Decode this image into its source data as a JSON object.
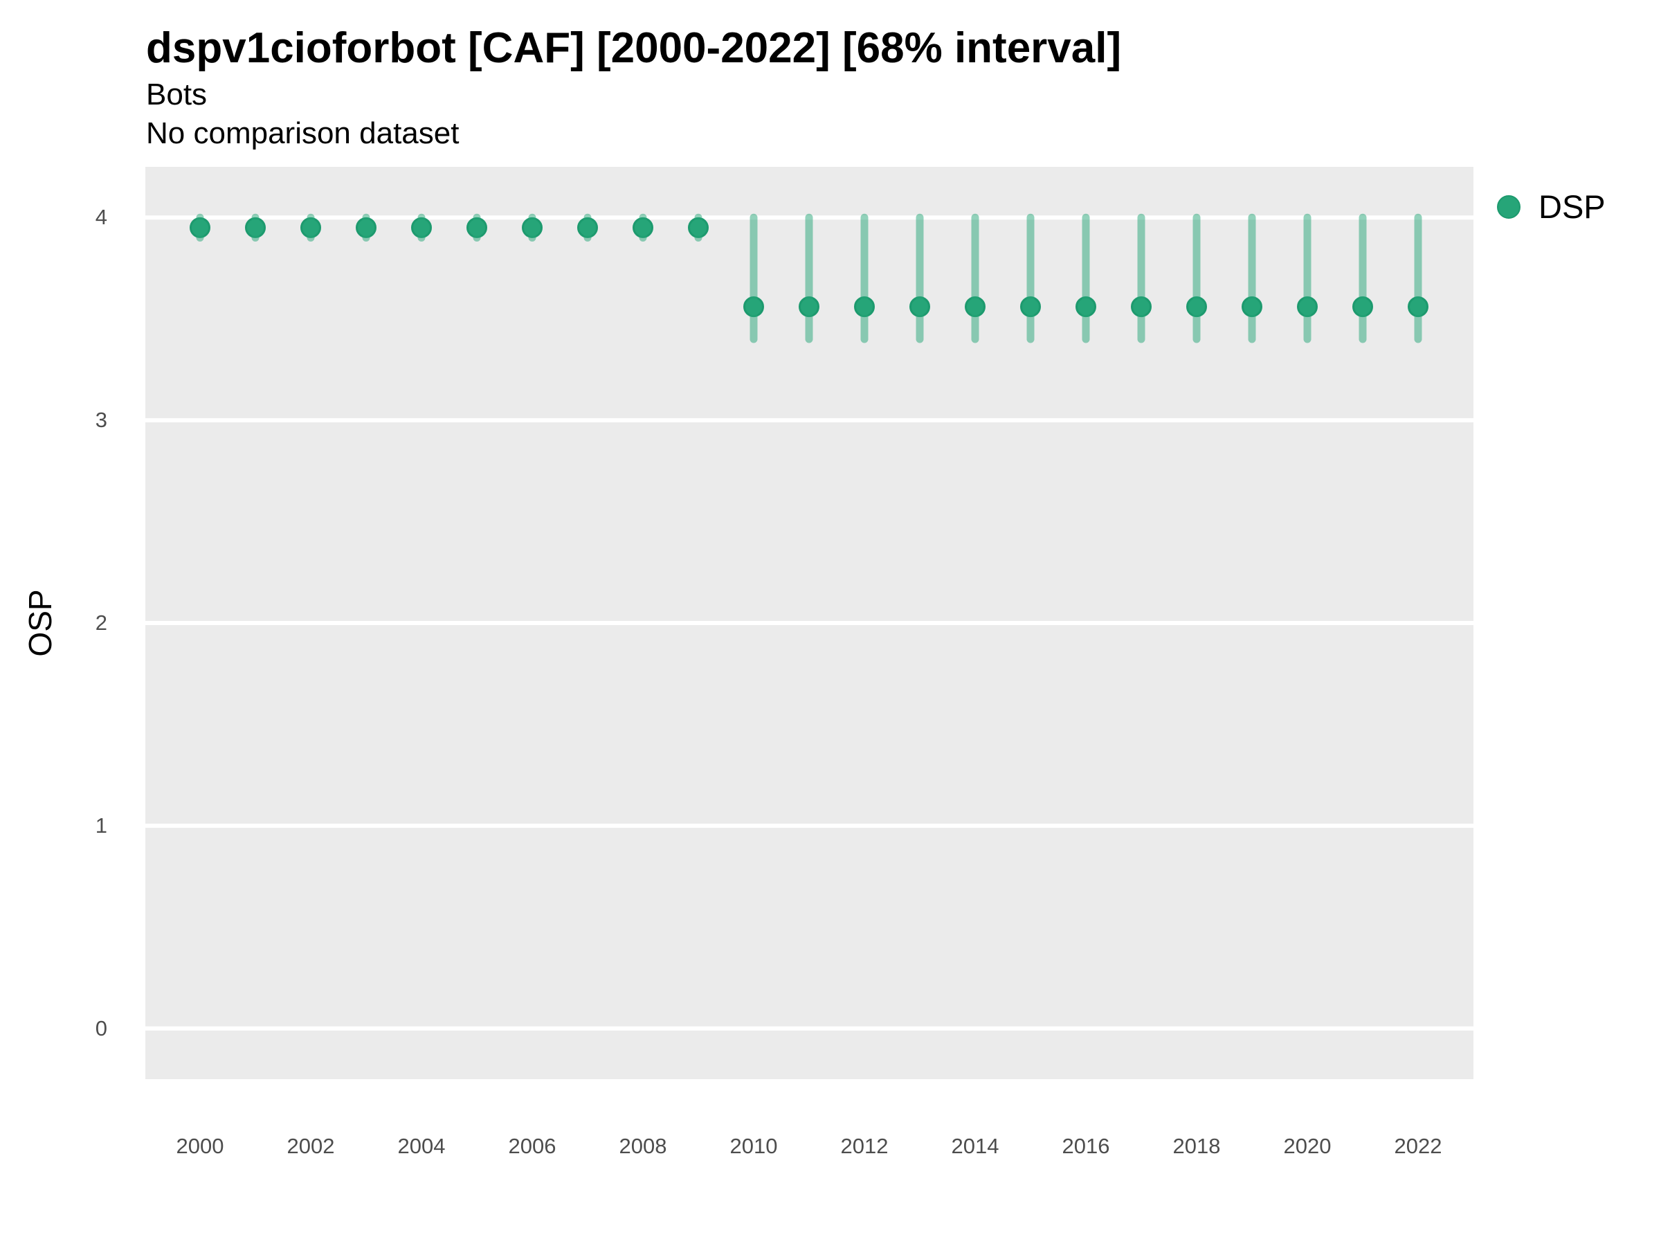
{
  "header": {
    "title": "dspv1cioforbot [CAF] [2000-2022] [68% interval]",
    "subtitle_line1": "Bots",
    "subtitle_line2": "No comparison dataset"
  },
  "axes": {
    "y_title": "OSP",
    "y_tick_labels": [
      "4",
      "3",
      "2",
      "1",
      "0"
    ],
    "y_tick_values": [
      4,
      3,
      2,
      1,
      0
    ],
    "x_tick_labels": [
      "2000",
      "2002",
      "2004",
      "2006",
      "2008",
      "2010",
      "2012",
      "2014",
      "2016",
      "2018",
      "2020",
      "2022"
    ],
    "x_tick_values": [
      2000,
      2002,
      2004,
      2006,
      2008,
      2010,
      2012,
      2014,
      2016,
      2018,
      2020,
      2022
    ]
  },
  "legend": {
    "items": [
      {
        "label": "DSP",
        "color": "#26a578"
      }
    ]
  },
  "style": {
    "panel_bg": "#ebebeb",
    "gridline_color": "#ffffff",
    "point_fill": "#26a578",
    "point_stroke": "#1d9a6e",
    "interval_rgba": "rgba(38,165,120,0.5)",
    "tick_label_color": "#4d4d4d"
  },
  "chart_data": {
    "type": "pointrange",
    "title": "dspv1cioforbot [CAF] [2000-2022] [68% interval]",
    "subtitle": [
      "Bots",
      "No comparison dataset"
    ],
    "xlabel": "",
    "ylabel": "OSP",
    "xlim": [
      1999,
      2023
    ],
    "ylim": [
      -0.25,
      4.25
    ],
    "grid": "horizontal major gridlines only, white on grey panel",
    "legend_position": "top-right",
    "interval": "68%",
    "series": [
      {
        "name": "DSP",
        "points": [
          {
            "x": 2000,
            "y": 3.95,
            "lo": 3.9,
            "hi": 4.0
          },
          {
            "x": 2001,
            "y": 3.95,
            "lo": 3.9,
            "hi": 4.0
          },
          {
            "x": 2002,
            "y": 3.95,
            "lo": 3.9,
            "hi": 4.0
          },
          {
            "x": 2003,
            "y": 3.95,
            "lo": 3.9,
            "hi": 4.0
          },
          {
            "x": 2004,
            "y": 3.95,
            "lo": 3.9,
            "hi": 4.0
          },
          {
            "x": 2005,
            "y": 3.95,
            "lo": 3.9,
            "hi": 4.0
          },
          {
            "x": 2006,
            "y": 3.95,
            "lo": 3.9,
            "hi": 4.0
          },
          {
            "x": 2007,
            "y": 3.95,
            "lo": 3.9,
            "hi": 4.0
          },
          {
            "x": 2008,
            "y": 3.95,
            "lo": 3.9,
            "hi": 4.0
          },
          {
            "x": 2009,
            "y": 3.95,
            "lo": 3.9,
            "hi": 4.0
          },
          {
            "x": 2010,
            "y": 3.56,
            "lo": 3.4,
            "hi": 4.0
          },
          {
            "x": 2011,
            "y": 3.56,
            "lo": 3.4,
            "hi": 4.0
          },
          {
            "x": 2012,
            "y": 3.56,
            "lo": 3.4,
            "hi": 4.0
          },
          {
            "x": 2013,
            "y": 3.56,
            "lo": 3.4,
            "hi": 4.0
          },
          {
            "x": 2014,
            "y": 3.56,
            "lo": 3.4,
            "hi": 4.0
          },
          {
            "x": 2015,
            "y": 3.56,
            "lo": 3.4,
            "hi": 4.0
          },
          {
            "x": 2016,
            "y": 3.56,
            "lo": 3.4,
            "hi": 4.0
          },
          {
            "x": 2017,
            "y": 3.56,
            "lo": 3.4,
            "hi": 4.0
          },
          {
            "x": 2018,
            "y": 3.56,
            "lo": 3.4,
            "hi": 4.0
          },
          {
            "x": 2019,
            "y": 3.56,
            "lo": 3.4,
            "hi": 4.0
          },
          {
            "x": 2020,
            "y": 3.56,
            "lo": 3.4,
            "hi": 4.0
          },
          {
            "x": 2021,
            "y": 3.56,
            "lo": 3.4,
            "hi": 4.0
          },
          {
            "x": 2022,
            "y": 3.56,
            "lo": 3.4,
            "hi": 4.0
          }
        ]
      }
    ]
  }
}
